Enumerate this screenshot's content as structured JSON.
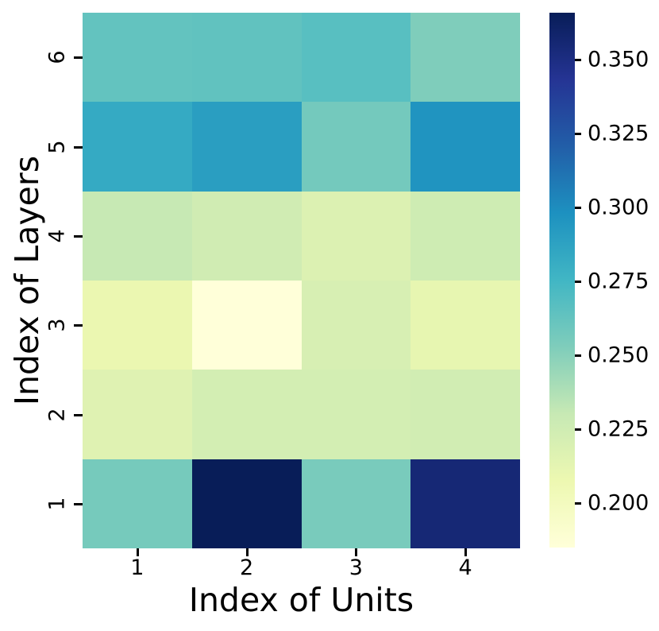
{
  "figure": {
    "background_color": "#ffffff",
    "text_color": "#000000"
  },
  "chart_data": {
    "type": "heatmap",
    "title": "",
    "xlabel": "Index of Units",
    "ylabel": "Index of Layers",
    "x_ticklabels": [
      "1",
      "2",
      "3",
      "4"
    ],
    "y_ticklabels": [
      "6",
      "5",
      "4",
      "3",
      "2",
      "1"
    ],
    "rows_order_note": "values[0] is the top row (layer 6), values[5] is the bottom row (layer 1)",
    "values": [
      [
        0.263,
        0.264,
        0.267,
        0.253
      ],
      [
        0.283,
        0.29,
        0.257,
        0.296
      ],
      [
        0.23,
        0.225,
        0.218,
        0.226
      ],
      [
        0.209,
        0.185,
        0.221,
        0.211
      ],
      [
        0.216,
        0.223,
        0.223,
        0.224
      ],
      [
        0.256,
        0.366,
        0.255,
        0.355
      ]
    ],
    "vmin": 0.185,
    "vmax": 0.366,
    "grid": false,
    "legend": null,
    "colormap": {
      "name": "YlGnBu",
      "stops": [
        "#ffffd9",
        "#edf8b1",
        "#c7e9b4",
        "#7fcdbb",
        "#41b6c4",
        "#1d91c0",
        "#225ea8",
        "#253494",
        "#081d58"
      ]
    },
    "colorbar": {
      "position": "right",
      "tick_values": [
        0.35,
        0.325,
        0.3,
        0.275,
        0.25,
        0.225,
        0.2
      ],
      "tick_labels": [
        "0.350",
        "0.325",
        "0.300",
        "0.275",
        "0.250",
        "0.225",
        "0.200"
      ]
    }
  }
}
